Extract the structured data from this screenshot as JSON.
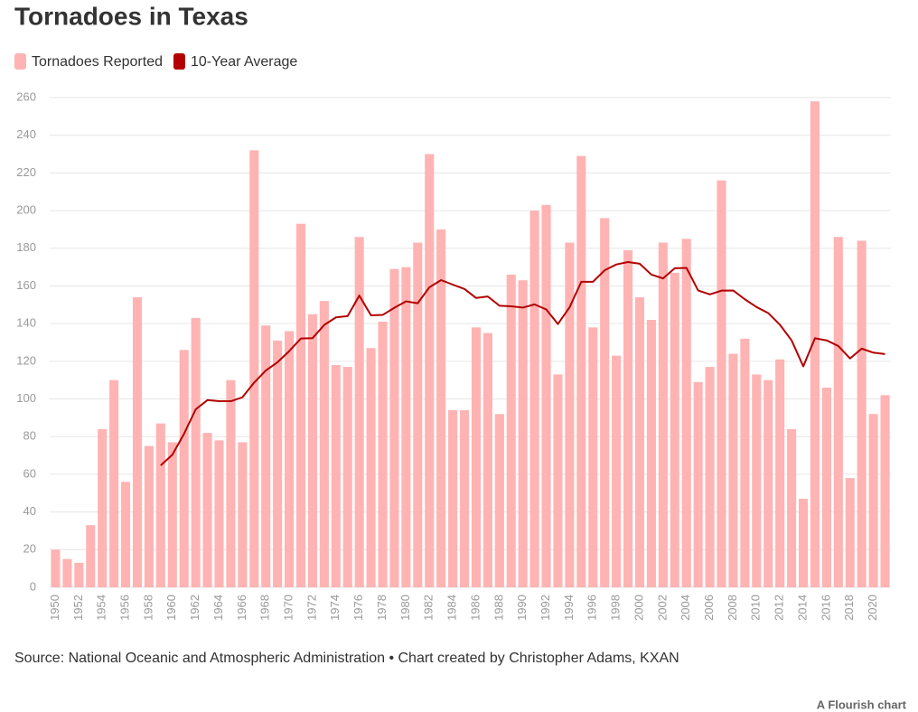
{
  "chart_data": {
    "type": "bar-line",
    "title": "Tornadoes in Texas",
    "categories": [
      "1950",
      null,
      "1952",
      null,
      "1954",
      null,
      "1956",
      null,
      "1958",
      null,
      "1960",
      null,
      "1962",
      null,
      "1964",
      null,
      "1966",
      null,
      "1968",
      null,
      "1970",
      null,
      "1972",
      null,
      "1974",
      null,
      "1976",
      null,
      "1978",
      null,
      "1980",
      null,
      "1982",
      null,
      "1984",
      null,
      "1986",
      null,
      "1988",
      null,
      "1990",
      null,
      "1992",
      null,
      "1994",
      null,
      "1996",
      null,
      "1998",
      null,
      "2000",
      null,
      "2002",
      null,
      "2004",
      null,
      "2006",
      null,
      "2008",
      null,
      "2010",
      null,
      "2012",
      null,
      "2014",
      null,
      "2016",
      null,
      "2018",
      null,
      "2020",
      null
    ],
    "series": [
      {
        "name": "Tornadoes Reported",
        "type": "bar",
        "color": "#ffb3b3",
        "values": [
          20,
          15,
          13,
          33,
          84,
          110,
          56,
          154,
          75,
          87,
          77,
          126,
          143,
          82,
          78,
          110,
          77,
          232,
          139,
          131,
          136,
          193,
          145,
          152,
          118,
          117,
          186,
          127,
          141,
          169,
          170,
          183,
          230,
          190,
          94,
          94,
          138,
          135,
          92,
          166,
          163,
          200,
          203,
          113,
          183,
          229,
          138,
          196,
          123,
          179,
          154,
          142,
          183,
          167,
          185,
          109,
          117,
          216,
          124,
          132,
          113,
          110,
          121,
          84,
          47,
          258,
          106,
          186,
          58,
          184,
          92,
          102
        ]
      },
      {
        "name": "10-Year Average",
        "type": "line",
        "color": "#b30000",
        "values": [
          null,
          null,
          null,
          null,
          null,
          null,
          null,
          null,
          null,
          64.7,
          70.4,
          81.5,
          94.5,
          99.4,
          98.8,
          98.8,
          100.9,
          108.7,
          115.1,
          119.5,
          125.4,
          132.1,
          132.3,
          139.3,
          143.3,
          144.0,
          154.9,
          144.4,
          144.6,
          148.4,
          151.8,
          150.8,
          159.3,
          163.1,
          160.7,
          158.4,
          153.6,
          154.4,
          149.5,
          149.2,
          148.5,
          150.2,
          147.5,
          139.8,
          148.7,
          162.2,
          162.2,
          168.3,
          171.4,
          172.7,
          171.8,
          166.0,
          164.0,
          169.4,
          169.6,
          157.6,
          155.5,
          157.5,
          157.6,
          152.9,
          148.8,
          145.6,
          139.4,
          131.1,
          117.3,
          132.2,
          131.1,
          128.1,
          121.5,
          126.7,
          124.6,
          123.8
        ]
      }
    ],
    "ylim": [
      0,
      260
    ],
    "yticks": [
      0,
      20,
      40,
      60,
      80,
      100,
      120,
      140,
      160,
      180,
      200,
      220,
      240,
      260
    ],
    "grid": true,
    "source": "Source: National Oceanic and Atmospheric Administration • Chart created by Christopher Adams, KXAN",
    "credit": "A Flourish chart"
  }
}
